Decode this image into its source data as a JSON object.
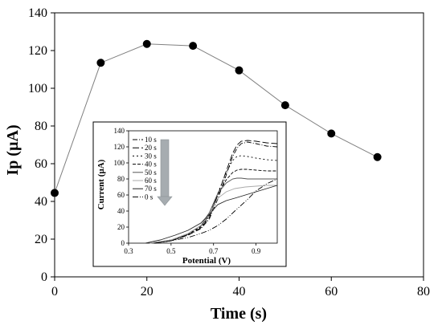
{
  "chart_data": [
    {
      "type": "line",
      "xlabel": "Time (s)",
      "ylabel": "Ip (µA)",
      "xlim": [
        0,
        80
      ],
      "ylim": [
        0,
        140
      ],
      "xticks": [
        "0",
        "20",
        "40",
        "60",
        "80"
      ],
      "yticks": [
        "0",
        "20",
        "40",
        "60",
        "80",
        "100",
        "120",
        "140"
      ],
      "grid": false,
      "x": [
        0,
        10,
        20,
        30,
        40,
        50,
        60,
        70
      ],
      "values": [
        44.5,
        113.5,
        123.5,
        122.5,
        109.5,
        91,
        76,
        63.5
      ],
      "line_color": "#808080",
      "marker_color": "#000000"
    },
    {
      "type": "line",
      "xlabel": "Potential (V)",
      "ylabel": "Current (µA)",
      "xlim": [
        0.3,
        1.0
      ],
      "ylim": [
        0,
        140
      ],
      "xticks": [
        "0.3",
        "0.5",
        "0.7",
        "0.9"
      ],
      "yticks": [
        "0",
        "20",
        "40",
        "60",
        "80",
        "100",
        "120",
        "140"
      ],
      "legend_position": "top-left",
      "arrow": "down",
      "series": [
        {
          "name": "10 s",
          "color": "#000000",
          "dash": "6 2 1 2",
          "x": [
            0.42,
            0.5,
            0.58,
            0.64,
            0.68,
            0.72,
            0.76,
            0.79,
            0.81,
            0.83,
            0.86,
            0.9,
            0.95,
            1.0
          ],
          "y": [
            0,
            3,
            10,
            18,
            30,
            55,
            85,
            108,
            118,
            124,
            126,
            124,
            121,
            120
          ]
        },
        {
          "name": "20 s",
          "color": "#000000",
          "dash": "8 3",
          "x": [
            0.42,
            0.5,
            0.58,
            0.64,
            0.68,
            0.72,
            0.76,
            0.79,
            0.81,
            0.83,
            0.86,
            0.9,
            0.95,
            1.0
          ],
          "y": [
            0,
            3,
            10,
            19,
            32,
            60,
            90,
            112,
            122,
            127,
            128,
            127,
            125,
            124
          ]
        },
        {
          "name": "30 s",
          "color": "#000000",
          "dash": "2 3",
          "x": [
            0.42,
            0.5,
            0.58,
            0.64,
            0.68,
            0.72,
            0.76,
            0.79,
            0.81,
            0.83,
            0.86,
            0.9,
            0.95,
            1.0
          ],
          "y": [
            0,
            3,
            11,
            20,
            34,
            62,
            88,
            103,
            108,
            109,
            108,
            106,
            104,
            103
          ]
        },
        {
          "name": "40 s",
          "color": "#000000",
          "dash": "4 2",
          "x": [
            0.42,
            0.5,
            0.58,
            0.64,
            0.68,
            0.72,
            0.76,
            0.79,
            0.81,
            0.83,
            0.86,
            0.9,
            0.95,
            1.0
          ],
          "y": [
            0,
            3,
            11,
            21,
            35,
            60,
            79,
            88,
            91,
            92,
            92,
            91,
            90,
            90
          ]
        },
        {
          "name": "50 s",
          "color": "#555555",
          "dash": "",
          "x": [
            0.4,
            0.5,
            0.58,
            0.64,
            0.68,
            0.72,
            0.76,
            0.79,
            0.81,
            0.83,
            0.86,
            0.9,
            0.95,
            1.0
          ],
          "y": [
            0,
            4,
            12,
            22,
            38,
            62,
            75,
            80,
            81,
            81,
            80,
            80,
            80,
            80
          ]
        },
        {
          "name": "60 s",
          "color": "#aaaaaa",
          "dash": "",
          "x": [
            0.4,
            0.5,
            0.58,
            0.64,
            0.68,
            0.72,
            0.76,
            0.8,
            0.85,
            0.9,
            0.95,
            1.0
          ],
          "y": [
            0,
            4,
            12,
            22,
            36,
            56,
            64,
            68,
            70,
            71,
            72,
            72
          ]
        },
        {
          "name": "70 s",
          "color": "#222222",
          "dash": "",
          "x": [
            0.38,
            0.45,
            0.52,
            0.58,
            0.64,
            0.68,
            0.72,
            0.76,
            0.8,
            0.85,
            0.9,
            0.95,
            1.0
          ],
          "y": [
            0,
            4,
            10,
            16,
            25,
            36,
            48,
            53,
            56,
            60,
            64,
            68,
            72
          ]
        },
        {
          "name": "0 s",
          "color": "#000000",
          "dash": "7 2 1 2 1 2",
          "x": [
            0.42,
            0.5,
            0.58,
            0.64,
            0.68,
            0.72,
            0.76,
            0.8,
            0.85,
            0.9,
            0.95,
            1.0
          ],
          "y": [
            0,
            3,
            7,
            12,
            16,
            22,
            30,
            40,
            52,
            65,
            74,
            80
          ]
        }
      ]
    }
  ]
}
